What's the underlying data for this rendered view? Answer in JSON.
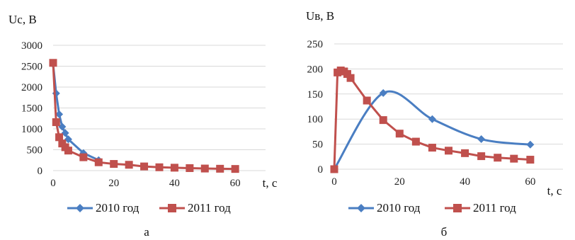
{
  "colors": {
    "series_2010": "#4A7EC2",
    "series_2011": "#C0504D",
    "grid": "#d9d9d9"
  },
  "chart_data": [
    {
      "type": "line",
      "ylabel": "Uc, B",
      "xlabel": "t, c",
      "caption": "а",
      "xlim": [
        0,
        70
      ],
      "ylim": [
        0,
        3000
      ],
      "xticks": [
        0,
        20,
        40,
        60
      ],
      "yticks": [
        0,
        500,
        1000,
        1500,
        2000,
        2500,
        3000
      ],
      "grid": "horizontal",
      "legend_position": "bottom",
      "series": [
        {
          "name": "2010 год",
          "marker": "diamond",
          "x": [
            0,
            1,
            2,
            3,
            4,
            5,
            10,
            15
          ],
          "y": [
            2550,
            1850,
            1350,
            1050,
            900,
            750,
            420,
            250
          ]
        },
        {
          "name": "2011 год",
          "marker": "square",
          "x": [
            0,
            1,
            2,
            3,
            4,
            5,
            10,
            15,
            20,
            25,
            30,
            35,
            40,
            45,
            50,
            55,
            60
          ],
          "y": [
            2580,
            1160,
            800,
            650,
            560,
            480,
            320,
            200,
            160,
            140,
            100,
            80,
            70,
            60,
            50,
            45,
            40
          ]
        }
      ]
    },
    {
      "type": "line",
      "ylabel": "Uв, B",
      "xlabel": "t, c",
      "caption": "б",
      "xlim": [
        0,
        70
      ],
      "ylim": [
        0,
        250
      ],
      "xticks": [
        0,
        20,
        40,
        60
      ],
      "yticks": [
        0,
        50,
        100,
        150,
        200,
        250
      ],
      "grid": "horizontal",
      "legend_position": "bottom",
      "series": [
        {
          "name": "2010 год",
          "marker": "diamond",
          "smooth": true,
          "x": [
            0,
            15,
            30,
            45,
            60
          ],
          "y": [
            0,
            152,
            100,
            60,
            49
          ]
        },
        {
          "name": "2011 год",
          "marker": "square",
          "x": [
            0,
            1,
            2,
            3,
            4,
            5,
            10,
            15,
            20,
            25,
            30,
            35,
            40,
            45,
            50,
            55,
            60
          ],
          "y": [
            0,
            193,
            197,
            195,
            190,
            182,
            137,
            98,
            71,
            55,
            43,
            37,
            32,
            26,
            23,
            21,
            19
          ]
        }
      ]
    }
  ]
}
